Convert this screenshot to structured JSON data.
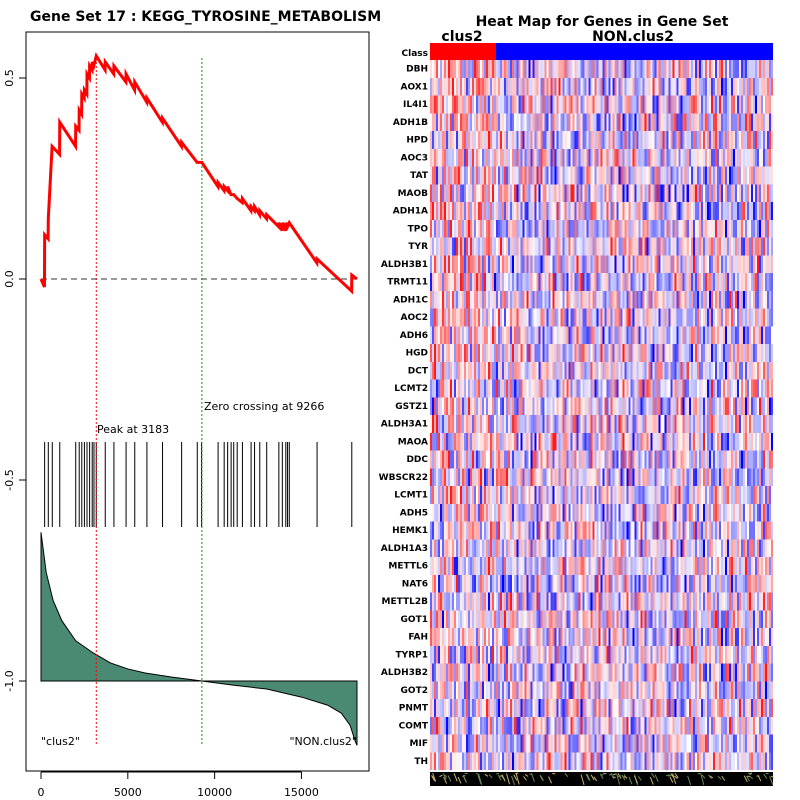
{
  "left_title": "Gene Set  17 : KEGG_TYROSINE_METABOLISM",
  "heatmap_title": "Heat Map for Genes in Gene Set",
  "peak_label": "Peak at 3183",
  "zero_crossing_label": "Zero crossing at 9266",
  "left_group_label": "\"clus2\"",
  "right_group_label": "\"NON.clus2\"",
  "class_row_label": "Class",
  "class_groups": [
    "clus2",
    "NON.clus2"
  ],
  "colors": {
    "es_line": "#ff0000",
    "metric_fill": "#4a8a72",
    "peak_line": "#ff0000",
    "zero_line": "#00a000",
    "class_clus2": "#ff0000",
    "class_non": "#0000ff"
  },
  "chart_data": {
    "type": "line",
    "title": "Gene Set  17 : KEGG_TYROSINE_METABOLISM",
    "xlim": [
      0,
      18500
    ],
    "ylim": [
      -1.2,
      0.6
    ],
    "x_ticks": [
      0,
      5000,
      10000,
      15000
    ],
    "x_tick_labels": [
      "0",
      "5000",
      "10000",
      "15000"
    ],
    "y_ticks": [
      0.5,
      0.0,
      -0.5,
      -1.0
    ],
    "y_tick_labels": [
      "0.5",
      "0.0",
      "-0.5",
      "-1.0"
    ],
    "peak_x": 3183,
    "zero_crossing_x": 9266,
    "hit_positions": [
      210,
      420,
      650,
      1080,
      2000,
      2200,
      2350,
      2500,
      2650,
      2800,
      2950,
      3050,
      3183,
      3700,
      4200,
      4900,
      5400,
      6100,
      7000,
      8100,
      9000,
      9250,
      10200,
      10550,
      10750,
      10950,
      11100,
      11300,
      11600,
      12100,
      12300,
      12600,
      13000,
      13700,
      13900,
      14100,
      14200,
      14300,
      15900,
      17900
    ],
    "running_es": [
      {
        "x": 0,
        "y": 0.0
      },
      {
        "x": 200,
        "y": -0.02
      },
      {
        "x": 210,
        "y": 0.11
      },
      {
        "x": 410,
        "y": 0.1
      },
      {
        "x": 420,
        "y": 0.15
      },
      {
        "x": 640,
        "y": 0.33
      },
      {
        "x": 1070,
        "y": 0.31
      },
      {
        "x": 1080,
        "y": 0.39
      },
      {
        "x": 1990,
        "y": 0.33
      },
      {
        "x": 2000,
        "y": 0.38
      },
      {
        "x": 2190,
        "y": 0.37
      },
      {
        "x": 2200,
        "y": 0.42
      },
      {
        "x": 2340,
        "y": 0.41
      },
      {
        "x": 2350,
        "y": 0.46
      },
      {
        "x": 2490,
        "y": 0.45
      },
      {
        "x": 2500,
        "y": 0.47
      },
      {
        "x": 2640,
        "y": 0.46
      },
      {
        "x": 2650,
        "y": 0.51
      },
      {
        "x": 2790,
        "y": 0.5
      },
      {
        "x": 2800,
        "y": 0.53
      },
      {
        "x": 2940,
        "y": 0.52
      },
      {
        "x": 2950,
        "y": 0.54
      },
      {
        "x": 3040,
        "y": 0.53
      },
      {
        "x": 3183,
        "y": 0.555
      },
      {
        "x": 3690,
        "y": 0.52
      },
      {
        "x": 3700,
        "y": 0.54
      },
      {
        "x": 4190,
        "y": 0.51
      },
      {
        "x": 4200,
        "y": 0.53
      },
      {
        "x": 4890,
        "y": 0.49
      },
      {
        "x": 4900,
        "y": 0.51
      },
      {
        "x": 5390,
        "y": 0.47
      },
      {
        "x": 5400,
        "y": 0.49
      },
      {
        "x": 6090,
        "y": 0.44
      },
      {
        "x": 6100,
        "y": 0.45
      },
      {
        "x": 6990,
        "y": 0.39
      },
      {
        "x": 7000,
        "y": 0.4
      },
      {
        "x": 8090,
        "y": 0.33
      },
      {
        "x": 8100,
        "y": 0.34
      },
      {
        "x": 8990,
        "y": 0.29
      },
      {
        "x": 9266,
        "y": 0.29
      },
      {
        "x": 10190,
        "y": 0.23
      },
      {
        "x": 10200,
        "y": 0.24
      },
      {
        "x": 10540,
        "y": 0.22
      },
      {
        "x": 10550,
        "y": 0.23
      },
      {
        "x": 10740,
        "y": 0.22
      },
      {
        "x": 10750,
        "y": 0.23
      },
      {
        "x": 10940,
        "y": 0.21
      },
      {
        "x": 11100,
        "y": 0.21
      },
      {
        "x": 11300,
        "y": 0.2
      },
      {
        "x": 11590,
        "y": 0.19
      },
      {
        "x": 11600,
        "y": 0.2
      },
      {
        "x": 12090,
        "y": 0.17
      },
      {
        "x": 12100,
        "y": 0.18
      },
      {
        "x": 12290,
        "y": 0.17
      },
      {
        "x": 12300,
        "y": 0.18
      },
      {
        "x": 12590,
        "y": 0.16
      },
      {
        "x": 12600,
        "y": 0.17
      },
      {
        "x": 12990,
        "y": 0.15
      },
      {
        "x": 13000,
        "y": 0.16
      },
      {
        "x": 13690,
        "y": 0.13
      },
      {
        "x": 13700,
        "y": 0.14
      },
      {
        "x": 13890,
        "y": 0.12
      },
      {
        "x": 13900,
        "y": 0.14
      },
      {
        "x": 14090,
        "y": 0.12
      },
      {
        "x": 14100,
        "y": 0.14
      },
      {
        "x": 14200,
        "y": 0.13
      },
      {
        "x": 14300,
        "y": 0.14
      },
      {
        "x": 15890,
        "y": 0.04
      },
      {
        "x": 15900,
        "y": 0.05
      },
      {
        "x": 17890,
        "y": -0.03
      },
      {
        "x": 17900,
        "y": 0.01
      },
      {
        "x": 18200,
        "y": 0.0
      }
    ],
    "metric_curve": [
      {
        "x": 0,
        "y": -0.63
      },
      {
        "x": 300,
        "y": -0.73
      },
      {
        "x": 700,
        "y": -0.8
      },
      {
        "x": 1200,
        "y": -0.85
      },
      {
        "x": 2000,
        "y": -0.9
      },
      {
        "x": 3000,
        "y": -0.93
      },
      {
        "x": 4000,
        "y": -0.955
      },
      {
        "x": 5000,
        "y": -0.97
      },
      {
        "x": 6000,
        "y": -0.98
      },
      {
        "x": 7500,
        "y": -0.99
      },
      {
        "x": 9266,
        "y": -1.0
      },
      {
        "x": 11000,
        "y": -1.01
      },
      {
        "x": 13000,
        "y": -1.02
      },
      {
        "x": 15000,
        "y": -1.04
      },
      {
        "x": 16500,
        "y": -1.06
      },
      {
        "x": 17300,
        "y": -1.08
      },
      {
        "x": 17800,
        "y": -1.11
      },
      {
        "x": 18100,
        "y": -1.15
      }
    ]
  },
  "genes": [
    "DBH",
    "AOX1",
    "IL4I1",
    "ADH1B",
    "HPD",
    "AOC3",
    "TAT",
    "MAOB",
    "ADH1A",
    "TPO",
    "TYR",
    "ALDH3B1",
    "TRMT11",
    "ADH1C",
    "AOC2",
    "ADH6",
    "HGD",
    "DCT",
    "LCMT2",
    "GSTZ1",
    "ALDH3A1",
    "MAOA",
    "DDC",
    "WBSCR22",
    "LCMT1",
    "ADH5",
    "HEMK1",
    "ALDH1A3",
    "METTL6",
    "NAT6",
    "METTL2B",
    "GOT1",
    "FAH",
    "TYRP1",
    "ALDH3B2",
    "GOT2",
    "PNMT",
    "COMT",
    "MIF",
    "TH"
  ]
}
